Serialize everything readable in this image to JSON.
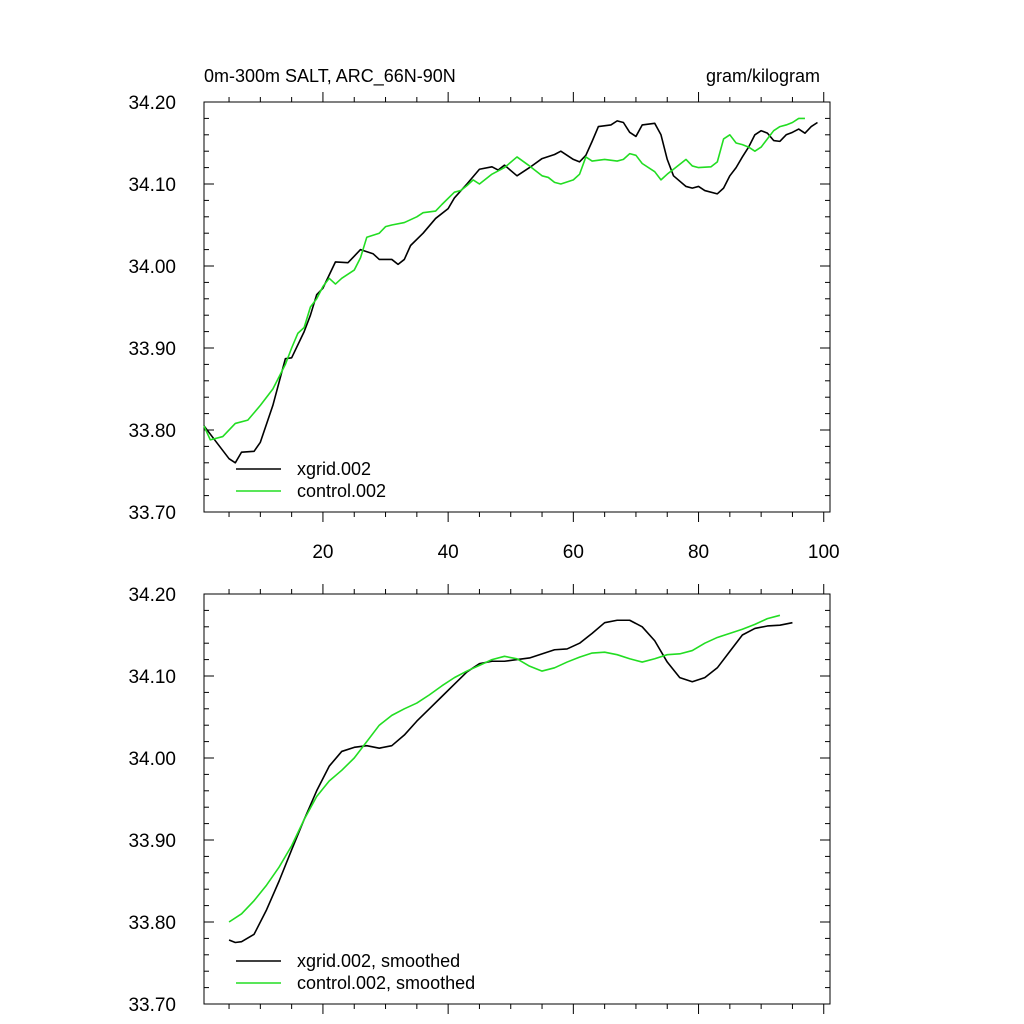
{
  "header": {
    "left": "0m-300m SALT, ARC_66N-90N",
    "right": "gram/kilogram"
  },
  "colors": {
    "xgrid": "#000000",
    "control": "#22dd22",
    "axis": "#000000"
  },
  "chart_data": [
    {
      "type": "line",
      "title": "0m-300m SALT, ARC_66N-90N",
      "units": "gram/kilogram",
      "xlim": [
        1,
        101
      ],
      "ylim": [
        33.7,
        34.2
      ],
      "x_ticks": [
        20,
        40,
        60,
        80,
        100
      ],
      "x_tick_labels": [
        "20",
        "40",
        "60",
        "80",
        "100"
      ],
      "y_ticks": [
        33.7,
        33.8,
        33.9,
        34.0,
        34.1,
        34.2
      ],
      "y_tick_labels": [
        "33.70",
        "33.80",
        "33.90",
        "34.00",
        "34.10",
        "34.20"
      ],
      "legend_position": "bottom-left",
      "series": [
        {
          "name": "xgrid.002",
          "color": "#000000",
          "points": [
            [
              1,
              33.805
            ],
            [
              3,
              33.785
            ],
            [
              5,
              33.765
            ],
            [
              6,
              33.76
            ],
            [
              7,
              33.773
            ],
            [
              9,
              33.774
            ],
            [
              10,
              33.785
            ],
            [
              12,
              33.83
            ],
            [
              14,
              33.887
            ],
            [
              15,
              33.888
            ],
            [
              17,
              33.92
            ],
            [
              18,
              33.94
            ],
            [
              19,
              33.965
            ],
            [
              20,
              33.973
            ],
            [
              22,
              34.005
            ],
            [
              24,
              34.004
            ],
            [
              25,
              34.012
            ],
            [
              26,
              34.02
            ],
            [
              28,
              34.015
            ],
            [
              29,
              34.008
            ],
            [
              31,
              34.008
            ],
            [
              32,
              34.002
            ],
            [
              33,
              34.008
            ],
            [
              34,
              34.025
            ],
            [
              36,
              34.04
            ],
            [
              38,
              34.058
            ],
            [
              40,
              34.07
            ],
            [
              41,
              34.083
            ],
            [
              43,
              34.1
            ],
            [
              45,
              34.118
            ],
            [
              47,
              34.121
            ],
            [
              48,
              34.117
            ],
            [
              49,
              34.123
            ],
            [
              51,
              34.11
            ],
            [
              53,
              34.12
            ],
            [
              55,
              34.131
            ],
            [
              57,
              34.136
            ],
            [
              58,
              34.14
            ],
            [
              60,
              34.13
            ],
            [
              61,
              34.127
            ],
            [
              62,
              34.135
            ],
            [
              63,
              34.152
            ],
            [
              64,
              34.17
            ],
            [
              66,
              34.172
            ],
            [
              67,
              34.177
            ],
            [
              68,
              34.175
            ],
            [
              69,
              34.163
            ],
            [
              70,
              34.158
            ],
            [
              71,
              34.172
            ],
            [
              73,
              34.174
            ],
            [
              74,
              34.16
            ],
            [
              75,
              34.13
            ],
            [
              76,
              34.11
            ],
            [
              78,
              34.097
            ],
            [
              79,
              34.095
            ],
            [
              80,
              34.097
            ],
            [
              81,
              34.092
            ],
            [
              83,
              34.088
            ],
            [
              84,
              34.095
            ],
            [
              85,
              34.11
            ],
            [
              86,
              34.12
            ],
            [
              87,
              34.133
            ],
            [
              88,
              34.145
            ],
            [
              89,
              34.16
            ],
            [
              90,
              34.165
            ],
            [
              91,
              34.162
            ],
            [
              92,
              34.153
            ],
            [
              93,
              34.152
            ],
            [
              94,
              34.16
            ],
            [
              95,
              34.163
            ],
            [
              96,
              34.167
            ],
            [
              97,
              34.162
            ],
            [
              98,
              34.17
            ],
            [
              99,
              34.175
            ]
          ]
        },
        {
          "name": "control.002",
          "color": "#22dd22",
          "points": [
            [
              1,
              33.805
            ],
            [
              2,
              33.788
            ],
            [
              4,
              33.792
            ],
            [
              6,
              33.808
            ],
            [
              8,
              33.812
            ],
            [
              10,
              33.83
            ],
            [
              12,
              33.85
            ],
            [
              14,
              33.88
            ],
            [
              15,
              33.9
            ],
            [
              16,
              33.918
            ],
            [
              17,
              33.925
            ],
            [
              18,
              33.95
            ],
            [
              19,
              33.96
            ],
            [
              20,
              33.975
            ],
            [
              21,
              33.985
            ],
            [
              22,
              33.978
            ],
            [
              23,
              33.985
            ],
            [
              24,
              33.99
            ],
            [
              25,
              33.995
            ],
            [
              26,
              34.01
            ],
            [
              27,
              34.035
            ],
            [
              29,
              34.04
            ],
            [
              30,
              34.048
            ],
            [
              31,
              34.05
            ],
            [
              33,
              34.053
            ],
            [
              35,
              34.06
            ],
            [
              36,
              34.065
            ],
            [
              38,
              34.067
            ],
            [
              39,
              34.075
            ],
            [
              41,
              34.09
            ],
            [
              42,
              34.092
            ],
            [
              43,
              34.098
            ],
            [
              44,
              34.105
            ],
            [
              45,
              34.1
            ],
            [
              47,
              34.112
            ],
            [
              49,
              34.12
            ],
            [
              51,
              34.133
            ],
            [
              53,
              34.122
            ],
            [
              55,
              34.11
            ],
            [
              56,
              34.108
            ],
            [
              57,
              34.102
            ],
            [
              58,
              34.1
            ],
            [
              60,
              34.105
            ],
            [
              61,
              34.112
            ],
            [
              62,
              34.133
            ],
            [
              63,
              34.128
            ],
            [
              65,
              34.13
            ],
            [
              67,
              34.128
            ],
            [
              68,
              34.13
            ],
            [
              69,
              34.137
            ],
            [
              70,
              34.135
            ],
            [
              71,
              34.125
            ],
            [
              73,
              34.115
            ],
            [
              74,
              34.105
            ],
            [
              75,
              34.112
            ],
            [
              76,
              34.118
            ],
            [
              78,
              34.13
            ],
            [
              79,
              34.122
            ],
            [
              80,
              34.12
            ],
            [
              82,
              34.121
            ],
            [
              83,
              34.127
            ],
            [
              84,
              34.155
            ],
            [
              85,
              34.16
            ],
            [
              86,
              34.15
            ],
            [
              87,
              34.148
            ],
            [
              88,
              34.145
            ],
            [
              89,
              34.14
            ],
            [
              90,
              34.145
            ],
            [
              91,
              34.155
            ],
            [
              92,
              34.165
            ],
            [
              93,
              34.17
            ],
            [
              94,
              34.172
            ],
            [
              95,
              34.175
            ],
            [
              96,
              34.18
            ],
            [
              97,
              34.18
            ]
          ]
        }
      ]
    },
    {
      "type": "line",
      "xlim": [
        1,
        101
      ],
      "ylim": [
        33.7,
        34.2
      ],
      "x_ticks": [
        20,
        40,
        60,
        80,
        100
      ],
      "y_ticks": [
        33.7,
        33.8,
        33.9,
        34.0,
        34.1,
        34.2
      ],
      "y_tick_labels": [
        "33.70",
        "33.80",
        "33.90",
        "34.00",
        "34.10",
        "34.20"
      ],
      "legend_position": "bottom-left",
      "series": [
        {
          "name": "xgrid.002, smoothed",
          "color": "#000000",
          "points": [
            [
              5,
              33.778
            ],
            [
              6,
              33.775
            ],
            [
              7,
              33.776
            ],
            [
              9,
              33.785
            ],
            [
              11,
              33.815
            ],
            [
              13,
              33.85
            ],
            [
              15,
              33.888
            ],
            [
              17,
              33.925
            ],
            [
              19,
              33.96
            ],
            [
              21,
              33.99
            ],
            [
              23,
              34.008
            ],
            [
              25,
              34.013
            ],
            [
              27,
              34.015
            ],
            [
              29,
              34.012
            ],
            [
              31,
              34.015
            ],
            [
              33,
              34.028
            ],
            [
              35,
              34.045
            ],
            [
              37,
              34.06
            ],
            [
              39,
              34.075
            ],
            [
              41,
              34.09
            ],
            [
              43,
              34.105
            ],
            [
              45,
              34.115
            ],
            [
              47,
              34.118
            ],
            [
              49,
              34.118
            ],
            [
              51,
              34.12
            ],
            [
              53,
              34.122
            ],
            [
              55,
              34.127
            ],
            [
              57,
              34.132
            ],
            [
              59,
              34.133
            ],
            [
              61,
              34.14
            ],
            [
              63,
              34.152
            ],
            [
              65,
              34.165
            ],
            [
              67,
              34.168
            ],
            [
              69,
              34.168
            ],
            [
              71,
              34.16
            ],
            [
              73,
              34.143
            ],
            [
              75,
              34.117
            ],
            [
              77,
              34.098
            ],
            [
              79,
              34.093
            ],
            [
              81,
              34.098
            ],
            [
              83,
              34.11
            ],
            [
              85,
              34.13
            ],
            [
              87,
              34.15
            ],
            [
              89,
              34.158
            ],
            [
              91,
              34.161
            ],
            [
              93,
              34.162
            ],
            [
              95,
              34.165
            ]
          ]
        },
        {
          "name": "control.002, smoothed",
          "color": "#22dd22",
          "points": [
            [
              5,
              33.8
            ],
            [
              7,
              33.81
            ],
            [
              9,
              33.826
            ],
            [
              11,
              33.845
            ],
            [
              13,
              33.867
            ],
            [
              15,
              33.893
            ],
            [
              17,
              33.925
            ],
            [
              19,
              33.953
            ],
            [
              21,
              33.972
            ],
            [
              23,
              33.985
            ],
            [
              25,
              34.0
            ],
            [
              27,
              34.02
            ],
            [
              29,
              34.04
            ],
            [
              31,
              34.052
            ],
            [
              33,
              34.06
            ],
            [
              35,
              34.067
            ],
            [
              37,
              34.077
            ],
            [
              39,
              34.088
            ],
            [
              41,
              34.098
            ],
            [
              43,
              34.106
            ],
            [
              45,
              34.113
            ],
            [
              47,
              34.12
            ],
            [
              49,
              34.124
            ],
            [
              51,
              34.121
            ],
            [
              53,
              34.112
            ],
            [
              55,
              34.106
            ],
            [
              57,
              34.11
            ],
            [
              59,
              34.117
            ],
            [
              61,
              34.123
            ],
            [
              63,
              34.128
            ],
            [
              65,
              34.129
            ],
            [
              67,
              34.126
            ],
            [
              69,
              34.121
            ],
            [
              71,
              34.117
            ],
            [
              73,
              34.121
            ],
            [
              75,
              34.126
            ],
            [
              77,
              34.127
            ],
            [
              79,
              34.131
            ],
            [
              81,
              34.14
            ],
            [
              83,
              34.147
            ],
            [
              85,
              34.152
            ],
            [
              87,
              34.157
            ],
            [
              89,
              34.163
            ],
            [
              91,
              34.17
            ],
            [
              93,
              34.174
            ]
          ]
        }
      ]
    }
  ]
}
